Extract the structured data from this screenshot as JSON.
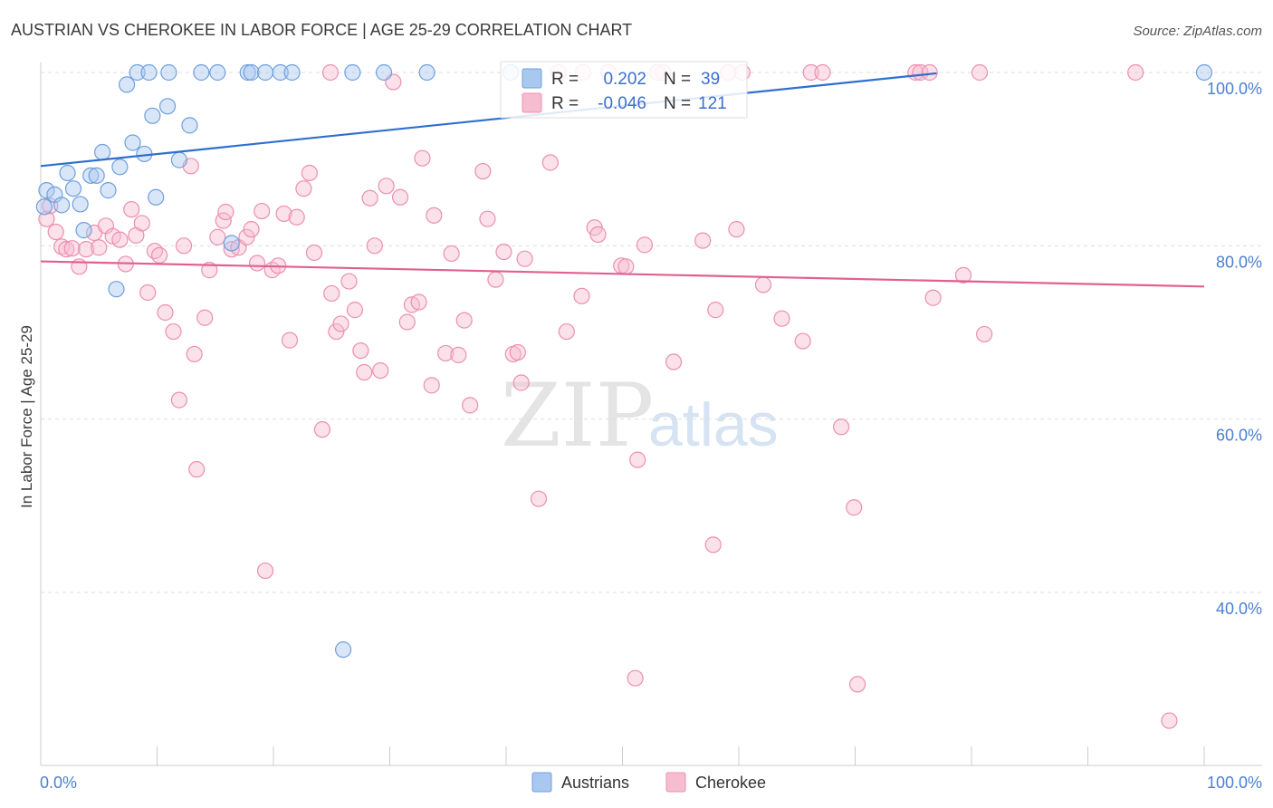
{
  "header": {
    "title": "AUSTRIAN VS CHEROKEE IN LABOR FORCE | AGE 25-29 CORRELATION CHART",
    "source": "Source: ZipAtlas.com"
  },
  "watermark": {
    "zip": "ZIP",
    "atlas": "atlas"
  },
  "legend": {
    "r_label": "R =",
    "n_label": "N =",
    "austrians": {
      "r": "0.202",
      "n": "39"
    },
    "cherokee": {
      "r": "-0.046",
      "n": "121"
    }
  },
  "bottom_legend": {
    "austrians": "Austrians",
    "cherokee": "Cherokee"
  },
  "colors": {
    "austrians_fill": "#a9c8ef",
    "austrians_stroke": "#6f9fde",
    "austrians_line": "#2f6fce",
    "cherokee_fill": "#f6bdd0",
    "cherokee_stroke": "#ec8fb0",
    "cherokee_line": "#e0608f",
    "tick_text": "#4a7fd0",
    "grid": "#dddddd"
  },
  "chart_data": {
    "type": "scatter",
    "title": "AUSTRIAN VS CHEROKEE IN LABOR FORCE | AGE 25-29 CORRELATION CHART",
    "xlabel": "",
    "ylabel": "In Labor Force | Age 25-29",
    "xlim": [
      0,
      100
    ],
    "ylim": [
      20,
      102
    ],
    "x_tick_labels": [
      "0.0%",
      "100.0%"
    ],
    "y_ticks": [
      40,
      60,
      80,
      100
    ],
    "y_tick_labels": [
      "40.0%",
      "60.0%",
      "80.0%",
      "100.0%"
    ],
    "grid": true,
    "legend_position": "top-center",
    "series": [
      {
        "name": "Austrians",
        "r": 0.202,
        "n": 39,
        "trend": {
          "x": [
            0,
            77
          ],
          "y": [
            89.2,
            99.9
          ]
        },
        "points": [
          [
            0.3,
            84.5
          ],
          [
            0.5,
            86.4
          ],
          [
            1.2,
            85.9
          ],
          [
            1.8,
            84.7
          ],
          [
            2.3,
            88.4
          ],
          [
            2.8,
            86.6
          ],
          [
            3.4,
            84.8
          ],
          [
            3.7,
            81.8
          ],
          [
            4.3,
            88.1
          ],
          [
            4.8,
            88.1
          ],
          [
            5.3,
            90.8
          ],
          [
            5.8,
            86.4
          ],
          [
            6.5,
            75.0
          ],
          [
            6.8,
            89.1
          ],
          [
            7.4,
            98.6
          ],
          [
            7.9,
            91.9
          ],
          [
            8.3,
            100
          ],
          [
            8.9,
            90.6
          ],
          [
            9.3,
            100
          ],
          [
            9.6,
            95.0
          ],
          [
            9.9,
            85.6
          ],
          [
            10.9,
            96.1
          ],
          [
            11.0,
            100
          ],
          [
            11.9,
            89.9
          ],
          [
            12.8,
            93.9
          ],
          [
            13.8,
            100
          ],
          [
            15.2,
            100
          ],
          [
            16.4,
            80.3
          ],
          [
            17.8,
            100
          ],
          [
            18.1,
            100
          ],
          [
            19.3,
            100
          ],
          [
            20.6,
            100
          ],
          [
            21.6,
            100
          ],
          [
            26.0,
            33.4
          ],
          [
            26.8,
            100
          ],
          [
            29.5,
            100
          ],
          [
            33.2,
            100
          ],
          [
            40.4,
            100
          ],
          [
            100,
            100
          ]
        ]
      },
      {
        "name": "Cherokee",
        "r": -0.046,
        "n": 121,
        "trend": {
          "x": [
            0,
            100
          ],
          "y": [
            78.2,
            75.3
          ]
        },
        "points": [
          [
            0.5,
            83.1
          ],
          [
            0.8,
            84.6
          ],
          [
            1.3,
            81.6
          ],
          [
            1.8,
            79.9
          ],
          [
            2.2,
            79.6
          ],
          [
            2.7,
            79.7
          ],
          [
            3.3,
            77.6
          ],
          [
            3.9,
            79.6
          ],
          [
            4.6,
            81.5
          ],
          [
            5.0,
            79.8
          ],
          [
            5.6,
            82.3
          ],
          [
            6.2,
            81.1
          ],
          [
            6.8,
            80.7
          ],
          [
            7.3,
            77.9
          ],
          [
            7.8,
            84.2
          ],
          [
            8.2,
            81.2
          ],
          [
            8.7,
            82.6
          ],
          [
            9.2,
            74.6
          ],
          [
            9.8,
            79.4
          ],
          [
            10.2,
            78.9
          ],
          [
            10.7,
            72.3
          ],
          [
            11.4,
            70.1
          ],
          [
            11.9,
            62.2
          ],
          [
            12.3,
            80.0
          ],
          [
            12.9,
            89.2
          ],
          [
            13.4,
            54.2
          ],
          [
            14.1,
            71.7
          ],
          [
            14.5,
            77.2
          ],
          [
            15.2,
            81.0
          ],
          [
            15.7,
            82.9
          ],
          [
            15.9,
            83.9
          ],
          [
            16.4,
            79.6
          ],
          [
            17.0,
            79.8
          ],
          [
            17.7,
            81.0
          ],
          [
            18.1,
            81.9
          ],
          [
            18.6,
            78.0
          ],
          [
            19.0,
            84.0
          ],
          [
            19.3,
            42.5
          ],
          [
            19.9,
            77.2
          ],
          [
            20.4,
            77.7
          ],
          [
            20.9,
            83.7
          ],
          [
            21.4,
            69.1
          ],
          [
            22.0,
            83.3
          ],
          [
            22.6,
            86.6
          ],
          [
            23.1,
            88.4
          ],
          [
            23.5,
            79.2
          ],
          [
            24.2,
            58.8
          ],
          [
            25.0,
            74.5
          ],
          [
            25.4,
            70.1
          ],
          [
            25.8,
            71.0
          ],
          [
            26.5,
            75.9
          ],
          [
            27.0,
            72.6
          ],
          [
            27.5,
            67.9
          ],
          [
            27.8,
            65.4
          ],
          [
            28.3,
            85.5
          ],
          [
            28.7,
            80.0
          ],
          [
            29.2,
            65.6
          ],
          [
            29.7,
            86.9
          ],
          [
            30.3,
            98.9
          ],
          [
            30.9,
            85.6
          ],
          [
            31.5,
            71.2
          ],
          [
            31.9,
            73.2
          ],
          [
            32.5,
            73.5
          ],
          [
            32.8,
            90.1
          ],
          [
            33.6,
            63.9
          ],
          [
            33.8,
            83.5
          ],
          [
            34.8,
            67.6
          ],
          [
            35.3,
            79.1
          ],
          [
            35.9,
            67.4
          ],
          [
            36.4,
            71.4
          ],
          [
            36.9,
            61.6
          ],
          [
            38.0,
            88.6
          ],
          [
            38.4,
            83.1
          ],
          [
            39.1,
            76.1
          ],
          [
            39.8,
            79.3
          ],
          [
            40.6,
            67.5
          ],
          [
            41.0,
            67.7
          ],
          [
            41.3,
            64.2
          ],
          [
            41.6,
            78.5
          ],
          [
            42.8,
            50.8
          ],
          [
            43.8,
            89.6
          ],
          [
            45.2,
            70.1
          ],
          [
            46.5,
            74.2
          ],
          [
            47.6,
            82.1
          ],
          [
            47.9,
            81.3
          ],
          [
            48.8,
            100
          ],
          [
            49.9,
            77.7
          ],
          [
            50.3,
            77.6
          ],
          [
            51.1,
            30.1
          ],
          [
            51.3,
            55.3
          ],
          [
            51.9,
            80.1
          ],
          [
            53.0,
            100
          ],
          [
            53.5,
            100
          ],
          [
            54.4,
            66.6
          ],
          [
            56.9,
            80.6
          ],
          [
            57.8,
            45.5
          ],
          [
            58.0,
            72.6
          ],
          [
            59.1,
            100
          ],
          [
            59.8,
            81.9
          ],
          [
            60.3,
            100
          ],
          [
            62.1,
            75.5
          ],
          [
            63.7,
            71.6
          ],
          [
            65.5,
            69.0
          ],
          [
            66.2,
            100
          ],
          [
            67.2,
            100
          ],
          [
            68.8,
            59.1
          ],
          [
            69.9,
            49.8
          ],
          [
            70.2,
            29.4
          ],
          [
            75.2,
            100
          ],
          [
            75.6,
            100
          ],
          [
            76.7,
            74.0
          ],
          [
            79.3,
            76.6
          ],
          [
            80.7,
            100
          ],
          [
            81.1,
            69.8
          ],
          [
            94.1,
            100
          ],
          [
            97.0,
            25.2
          ],
          [
            13.2,
            67.5
          ],
          [
            46.6,
            100
          ],
          [
            44.5,
            100
          ],
          [
            76.4,
            100
          ],
          [
            24.9,
            100
          ]
        ]
      }
    ]
  }
}
